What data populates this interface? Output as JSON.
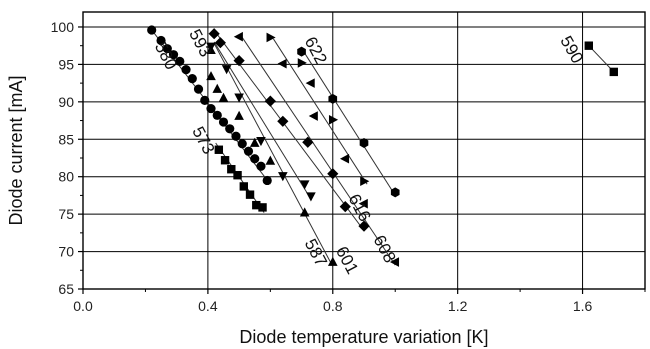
{
  "chart_data": {
    "type": "scatter",
    "title": "",
    "xlabel": "Diode temperature variation [K]",
    "ylabel": "Diode current [mA]",
    "xlim": [
      0.0,
      1.8
    ],
    "ylim": [
      65,
      102
    ],
    "xticks": [
      0.0,
      0.4,
      0.8,
      1.2,
      1.6
    ],
    "yticks": [
      65,
      70,
      75,
      80,
      85,
      90,
      95,
      100
    ],
    "xtick_labels": [
      "0.0",
      "0.4",
      "0.8",
      "1.2",
      "1.6"
    ],
    "ytick_labels": [
      "65",
      "70",
      "75",
      "80",
      "85",
      "90",
      "95",
      "100"
    ],
    "grid": true,
    "series": [
      {
        "name": "573",
        "marker": "square",
        "points": [
          [
            0.435,
            83.6
          ],
          [
            0.455,
            82.2
          ],
          [
            0.475,
            81.0
          ],
          [
            0.495,
            80.2
          ],
          [
            0.515,
            78.7
          ],
          [
            0.535,
            77.6
          ],
          [
            0.555,
            76.2
          ],
          [
            0.575,
            75.9
          ]
        ]
      },
      {
        "name": "580",
        "marker": "circle",
        "points": [
          [
            0.22,
            99.6
          ],
          [
            0.25,
            98.2
          ],
          [
            0.27,
            97.1
          ],
          [
            0.29,
            96.3
          ],
          [
            0.31,
            95.4
          ],
          [
            0.33,
            94.3
          ],
          [
            0.35,
            93.1
          ],
          [
            0.37,
            91.7
          ],
          [
            0.39,
            90.2
          ],
          [
            0.41,
            89.1
          ],
          [
            0.43,
            88.2
          ],
          [
            0.45,
            87.3
          ],
          [
            0.47,
            86.4
          ],
          [
            0.49,
            85.4
          ],
          [
            0.51,
            84.4
          ],
          [
            0.53,
            83.4
          ],
          [
            0.55,
            82.4
          ],
          [
            0.57,
            81.4
          ],
          [
            0.59,
            79.5
          ]
        ]
      },
      {
        "name": "587",
        "marker": "triangle-up",
        "points": [
          [
            0.41,
            96.9
          ],
          [
            0.41,
            93.4
          ],
          [
            0.43,
            91.7
          ],
          [
            0.45,
            90.5
          ],
          [
            0.5,
            88.1
          ],
          [
            0.55,
            84.5
          ],
          [
            0.6,
            82.1
          ],
          [
            0.71,
            75.2
          ],
          [
            0.8,
            68.6
          ]
        ]
      },
      {
        "name": "590",
        "marker": "square",
        "points": [
          [
            1.62,
            97.5
          ],
          [
            1.7,
            94.0
          ]
        ]
      },
      {
        "name": "593",
        "marker": "triangle-down",
        "points": [
          [
            0.41,
            97.4
          ],
          [
            0.46,
            94.4
          ],
          [
            0.5,
            90.6
          ],
          [
            0.57,
            84.8
          ],
          [
            0.64,
            80.1
          ],
          [
            0.71,
            79.0
          ],
          [
            0.73,
            77.4
          ]
        ]
      },
      {
        "name": "601",
        "marker": "diamond",
        "points": [
          [
            0.42,
            99.1
          ],
          [
            0.44,
            97.9
          ],
          [
            0.5,
            95.5
          ],
          [
            0.6,
            90.1
          ],
          [
            0.64,
            87.4
          ],
          [
            0.72,
            84.6
          ],
          [
            0.8,
            80.4
          ],
          [
            0.84,
            76.0
          ],
          [
            0.9,
            73.4
          ]
        ]
      },
      {
        "name": "608",
        "marker": "triangle-left",
        "points": [
          [
            0.5,
            98.7
          ],
          [
            0.64,
            95.1
          ],
          [
            0.73,
            92.5
          ],
          [
            0.74,
            88.1
          ],
          [
            0.84,
            82.4
          ],
          [
            0.9,
            76.4
          ],
          [
            1.0,
            68.6
          ]
        ]
      },
      {
        "name": "616",
        "marker": "triangle-right",
        "points": [
          [
            0.6,
            98.6
          ],
          [
            0.7,
            95.2
          ],
          [
            0.8,
            87.6
          ],
          [
            0.9,
            79.4
          ]
        ]
      },
      {
        "name": "622",
        "marker": "hexagon",
        "points": [
          [
            0.7,
            96.7
          ],
          [
            0.8,
            90.4
          ],
          [
            0.9,
            84.5
          ],
          [
            1.0,
            77.9
          ]
        ]
      }
    ],
    "fit_lines": [
      {
        "series": "573",
        "from": [
          0.425,
          84.5
        ],
        "to": [
          0.58,
          75.2
        ]
      },
      {
        "series": "580",
        "from": [
          0.22,
          99.6
        ],
        "to": [
          0.6,
          79.0
        ]
      },
      {
        "series": "587",
        "from": [
          0.42,
          97.8
        ],
        "to": [
          0.8,
          68.0
        ]
      },
      {
        "series": "590",
        "from": [
          1.62,
          97.5
        ],
        "to": [
          1.7,
          94.0
        ]
      },
      {
        "series": "593",
        "from": [
          0.42,
          98.0
        ],
        "to": [
          0.73,
          77.0
        ]
      },
      {
        "series": "601",
        "from": [
          0.43,
          99.0
        ],
        "to": [
          0.9,
          72.8
        ]
      },
      {
        "series": "608",
        "from": [
          0.51,
          98.6
        ],
        "to": [
          1.0,
          68.2
        ]
      },
      {
        "series": "616",
        "from": [
          0.61,
          98.4
        ],
        "to": [
          0.91,
          79.0
        ]
      },
      {
        "series": "622",
        "from": [
          0.71,
          96.5
        ],
        "to": [
          1.0,
          77.5
        ]
      }
    ],
    "annotations": [
      {
        "text": "573",
        "x": 0.37,
        "y": 84.5,
        "rotation": 62
      },
      {
        "text": "580",
        "x": 0.25,
        "y": 95.8,
        "rotation": 62
      },
      {
        "text": "587",
        "x": 0.73,
        "y": 69.5,
        "rotation": 62
      },
      {
        "text": "590",
        "x": 1.55,
        "y": 96.6,
        "rotation": 60
      },
      {
        "text": "593",
        "x": 0.36,
        "y": 97.5,
        "rotation": 62
      },
      {
        "text": "601",
        "x": 0.83,
        "y": 68.5,
        "rotation": 62
      },
      {
        "text": "608",
        "x": 0.95,
        "y": 70.0,
        "rotation": 62
      },
      {
        "text": "616",
        "x": 0.87,
        "y": 75.5,
        "rotation": 62
      },
      {
        "text": "622",
        "x": 0.73,
        "y": 96.5,
        "rotation": 62
      }
    ]
  },
  "style": {
    "axis_color": "#000000",
    "grid_color": "#000000",
    "marker_color": "#000000",
    "fit_line_color": "#333333"
  }
}
